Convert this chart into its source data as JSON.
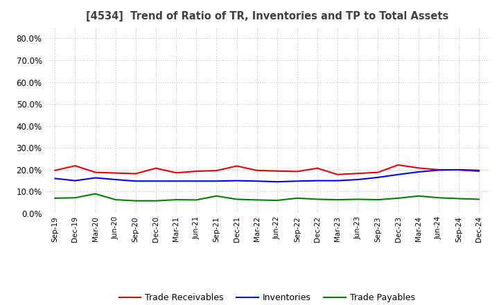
{
  "title": "[4534]  Trend of Ratio of TR, Inventories and TP to Total Assets",
  "labels": [
    "Sep-19",
    "Dec-19",
    "Mar-20",
    "Jun-20",
    "Sep-20",
    "Dec-20",
    "Mar-21",
    "Jun-21",
    "Sep-21",
    "Dec-21",
    "Mar-22",
    "Jun-22",
    "Sep-22",
    "Dec-22",
    "Mar-23",
    "Jun-23",
    "Sep-23",
    "Dec-23",
    "Mar-24",
    "Jun-24",
    "Sep-24",
    "Dec-24"
  ],
  "trade_receivables": [
    0.197,
    0.218,
    0.188,
    0.185,
    0.182,
    0.207,
    0.186,
    0.193,
    0.196,
    0.217,
    0.197,
    0.194,
    0.192,
    0.207,
    0.178,
    0.183,
    0.188,
    0.222,
    0.208,
    0.2,
    0.199,
    0.193
  ],
  "inventories": [
    0.16,
    0.15,
    0.163,
    0.155,
    0.148,
    0.148,
    0.148,
    0.148,
    0.148,
    0.15,
    0.148,
    0.145,
    0.148,
    0.15,
    0.15,
    0.155,
    0.165,
    0.178,
    0.19,
    0.198,
    0.2,
    0.197
  ],
  "trade_payables": [
    0.07,
    0.072,
    0.09,
    0.063,
    0.058,
    0.058,
    0.063,
    0.062,
    0.08,
    0.065,
    0.062,
    0.06,
    0.07,
    0.065,
    0.063,
    0.065,
    0.063,
    0.07,
    0.08,
    0.072,
    0.068,
    0.065
  ],
  "tr_color": "#e80000",
  "inv_color": "#0000ff",
  "tp_color": "#008000",
  "ylim": [
    0.0,
    0.85
  ],
  "yticks": [
    0.0,
    0.1,
    0.2,
    0.3,
    0.4,
    0.5,
    0.6,
    0.7,
    0.8
  ],
  "legend_labels": [
    "Trade Receivables",
    "Inventories",
    "Trade Payables"
  ],
  "bg_color": "#ffffff",
  "grid_color": "#999999",
  "title_color": "#404040"
}
